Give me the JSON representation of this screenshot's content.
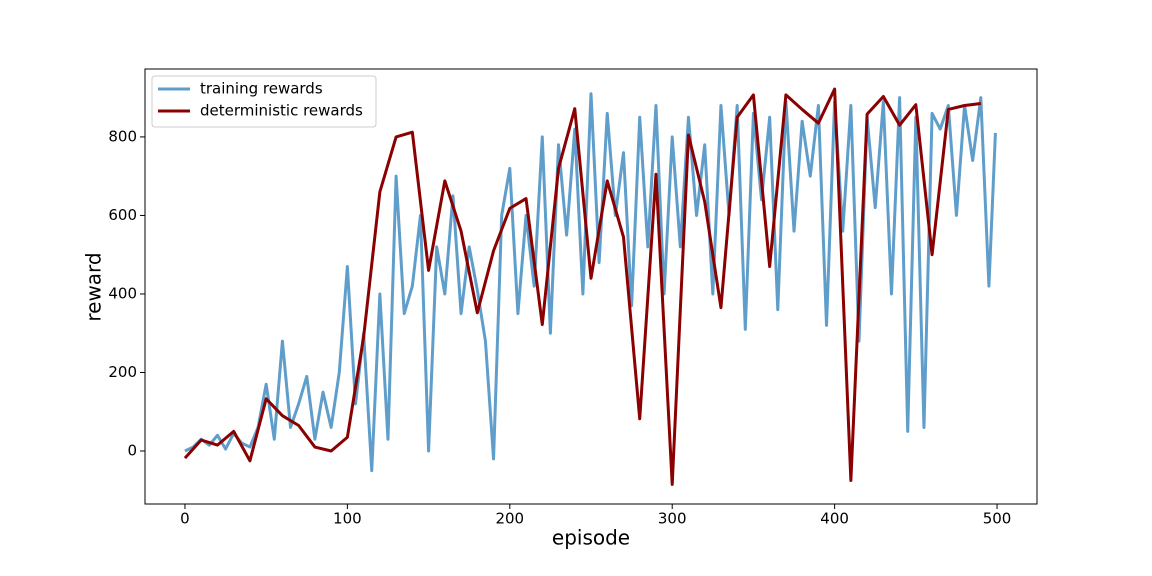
{
  "chart_data": {
    "type": "line",
    "x_label": "episode",
    "y_label": "reward",
    "xlim": [
      -24.6,
      524.6
    ],
    "ylim": [
      -135,
      973
    ],
    "xticks": [
      0,
      100,
      200,
      300,
      400,
      500
    ],
    "yticks": [
      0,
      200,
      400,
      600,
      800
    ],
    "legend": "upper left",
    "series": [
      {
        "name": "training rewards",
        "color": "#5f9ecb",
        "x": [
          0,
          5,
          10,
          15,
          20,
          25,
          30,
          35,
          40,
          45,
          50,
          55,
          60,
          65,
          70,
          75,
          80,
          85,
          90,
          95,
          100,
          105,
          110,
          115,
          120,
          125,
          130,
          135,
          140,
          145,
          150,
          155,
          160,
          165,
          170,
          175,
          180,
          185,
          190,
          195,
          200,
          205,
          210,
          215,
          220,
          225,
          230,
          235,
          240,
          245,
          250,
          255,
          260,
          265,
          270,
          275,
          280,
          285,
          290,
          295,
          300,
          305,
          310,
          315,
          320,
          325,
          330,
          335,
          340,
          345,
          350,
          355,
          360,
          365,
          370,
          375,
          380,
          385,
          390,
          395,
          400,
          405,
          410,
          415,
          420,
          425,
          430,
          435,
          440,
          445,
          450,
          455,
          460,
          465,
          470,
          475,
          480,
          485,
          490,
          495,
          499
        ],
        "values": [
          0,
          10,
          30,
          15,
          40,
          5,
          45,
          20,
          10,
          60,
          170,
          30,
          280,
          60,
          120,
          190,
          30,
          150,
          60,
          200,
          470,
          120,
          300,
          -50,
          400,
          30,
          700,
          350,
          420,
          600,
          0,
          520,
          400,
          650,
          350,
          520,
          410,
          280,
          -20,
          600,
          720,
          350,
          600,
          420,
          800,
          300,
          780,
          550,
          820,
          400,
          910,
          480,
          860,
          600,
          760,
          370,
          850,
          520,
          880,
          400,
          800,
          520,
          850,
          600,
          780,
          400,
          880,
          600,
          880,
          310,
          860,
          640,
          850,
          360,
          890,
          560,
          840,
          700,
          880,
          320,
          890,
          560,
          880,
          280,
          850,
          620,
          890,
          400,
          900,
          50,
          850,
          60,
          860,
          820,
          880,
          600,
          880,
          740,
          900,
          420,
          810
        ]
      },
      {
        "name": "deterministic rewards",
        "color": "#8b0000",
        "x": [
          0,
          10,
          20,
          30,
          40,
          50,
          60,
          70,
          80,
          90,
          100,
          110,
          120,
          130,
          140,
          150,
          160,
          170,
          180,
          190,
          200,
          210,
          220,
          230,
          240,
          250,
          260,
          270,
          280,
          290,
          300,
          310,
          320,
          330,
          340,
          350,
          360,
          370,
          380,
          390,
          400,
          410,
          420,
          430,
          440,
          450,
          460,
          470,
          480,
          490
        ],
        "values": [
          -18,
          28,
          15,
          50,
          -25,
          133,
          90,
          65,
          10,
          0,
          35,
          290,
          660,
          800,
          812,
          460,
          688,
          560,
          352,
          510,
          618,
          643,
          322,
          720,
          872,
          440,
          688,
          545,
          82,
          705,
          -85,
          805,
          635,
          365,
          850,
          907,
          470,
          907,
          870,
          835,
          922,
          -75,
          858,
          903,
          830,
          882,
          500,
          870,
          880,
          885
        ]
      }
    ]
  }
}
